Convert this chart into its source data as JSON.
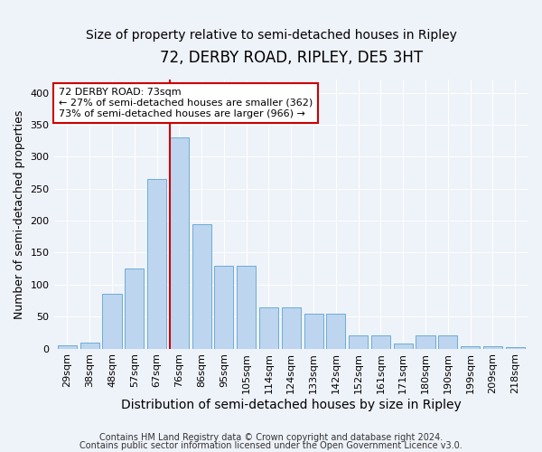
{
  "title": "72, DERBY ROAD, RIPLEY, DE5 3HT",
  "subtitle": "Size of property relative to semi-detached houses in Ripley",
  "xlabel": "Distribution of semi-detached houses by size in Ripley",
  "ylabel": "Number of semi-detached properties",
  "categories": [
    "29sqm",
    "38sqm",
    "48sqm",
    "57sqm",
    "67sqm",
    "76sqm",
    "86sqm",
    "95sqm",
    "105sqm",
    "114sqm",
    "124sqm",
    "133sqm",
    "142sqm",
    "152sqm",
    "161sqm",
    "171sqm",
    "180sqm",
    "190sqm",
    "199sqm",
    "209sqm",
    "218sqm"
  ],
  "bar_values": [
    5,
    10,
    85,
    125,
    265,
    330,
    195,
    130,
    130,
    65,
    65,
    55,
    55,
    20,
    20,
    8,
    20,
    20,
    4,
    4,
    2
  ],
  "bar_color": "#bdd5ee",
  "bar_edge_color": "#6aaed6",
  "vline_color": "#cc0000",
  "annotation_line1": "72 DERBY ROAD: 73sqm",
  "annotation_line2": "← 27% of semi-detached houses are smaller (362)",
  "annotation_line3": "73% of semi-detached houses are larger (966) →",
  "annotation_box_fc": "#ffffff",
  "annotation_box_ec": "#cc0000",
  "ylim": [
    0,
    420
  ],
  "yticks": [
    0,
    50,
    100,
    150,
    200,
    250,
    300,
    350,
    400
  ],
  "footer1": "Contains HM Land Registry data © Crown copyright and database right 2024.",
  "footer2": "Contains public sector information licensed under the Open Government Licence v3.0.",
  "bg_color": "#eef2f9",
  "grid_color": "#ffffff",
  "title_fontsize": 12,
  "subtitle_fontsize": 10,
  "tick_fontsize": 8,
  "ylabel_fontsize": 9,
  "xlabel_fontsize": 10,
  "footer_fontsize": 7
}
